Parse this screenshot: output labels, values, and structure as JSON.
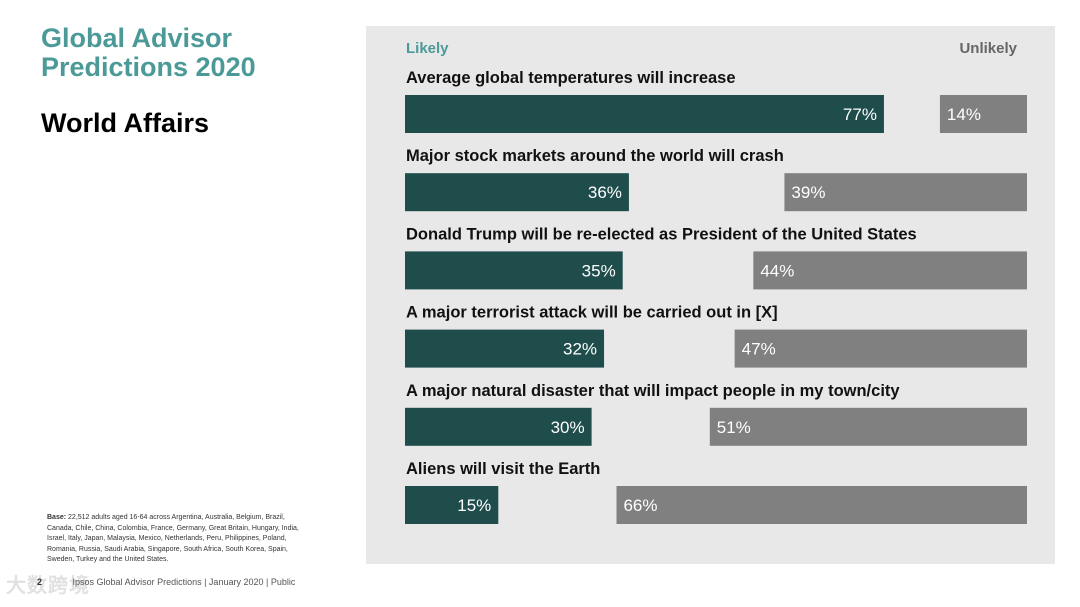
{
  "header": {
    "title_line1": "Global Advisor",
    "title_line2": "Predictions 2020",
    "section": "World Affairs"
  },
  "colors": {
    "title": "#4b9a98",
    "likely_bar": "#1f4d4b",
    "unlikely_bar": "#808080",
    "panel": "#e8e8e8"
  },
  "chart_data": {
    "type": "bar",
    "orientation": "horizontal",
    "legend": {
      "likely": "Likely",
      "unlikely": "Unlikely"
    },
    "categories": [
      "Average global temperatures will increase",
      "Major stock markets around the world will crash",
      "Donald Trump will be re-elected as President of the United States",
      "A major terrorist attack will be carried out in [X]",
      "A major natural disaster that will impact people in my town/city",
      "Aliens will visit the Earth"
    ],
    "series": [
      {
        "name": "Likely",
        "values": [
          77,
          36,
          35,
          32,
          30,
          15
        ],
        "labels": [
          "77%",
          "36%",
          "35%",
          "32%",
          "30%",
          "15%"
        ]
      },
      {
        "name": "Unlikely",
        "values": [
          14,
          39,
          44,
          47,
          51,
          66
        ],
        "labels": [
          "14%",
          "39%",
          "44%",
          "47%",
          "51%",
          "66%"
        ]
      }
    ],
    "unit": "%"
  },
  "base": {
    "label": "Base:",
    "text": "22,512 adults aged 16-64 across Argentina, Australia, Belgium, Brazil, Canada, Chile, China, Colombia, France, Germany, Great Britain, Hungary, India, Israel, Italy, Japan, Malaysia, Mexico, Netherlands, Peru, Philippines, Poland, Romania, Russia, Saudi Arabia, Singapore, South Africa, South Korea, Spain, Sweden, Turkey and the United States."
  },
  "footer": {
    "page_number": "2",
    "text": "Ipsos Global Advisor Predictions | January 2020 | Public"
  },
  "watermark": {
    "text": "大数跨境"
  }
}
